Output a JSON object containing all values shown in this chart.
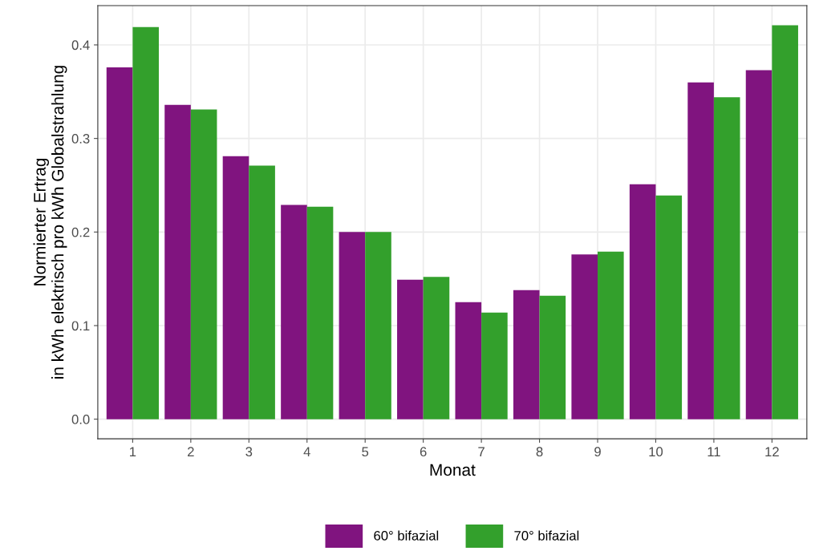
{
  "chart_data": {
    "type": "bar",
    "xlabel": "Monat",
    "ylabel": "Normierter Ertrag\nin kWh elektrisch pro kWh Globalstrahlung",
    "categories": [
      "1",
      "2",
      "3",
      "4",
      "5",
      "6",
      "7",
      "8",
      "9",
      "10",
      "11",
      "12"
    ],
    "series": [
      {
        "name": "60° bifazial",
        "color": "#80147f",
        "values": [
          0.376,
          0.336,
          0.281,
          0.229,
          0.2,
          0.149,
          0.125,
          0.138,
          0.176,
          0.251,
          0.36,
          0.373
        ]
      },
      {
        "name": "70° bifazial",
        "color": "#33a02c",
        "values": [
          0.419,
          0.331,
          0.271,
          0.227,
          0.2,
          0.152,
          0.114,
          0.132,
          0.179,
          0.239,
          0.344,
          0.421
        ]
      }
    ],
    "ylim": [
      -0.021,
      0.442
    ],
    "yticks": [
      {
        "value": 0,
        "label": "0.0"
      },
      0.1,
      0.2,
      0.3,
      0.4
    ],
    "grid": true,
    "legend": "bottom"
  }
}
